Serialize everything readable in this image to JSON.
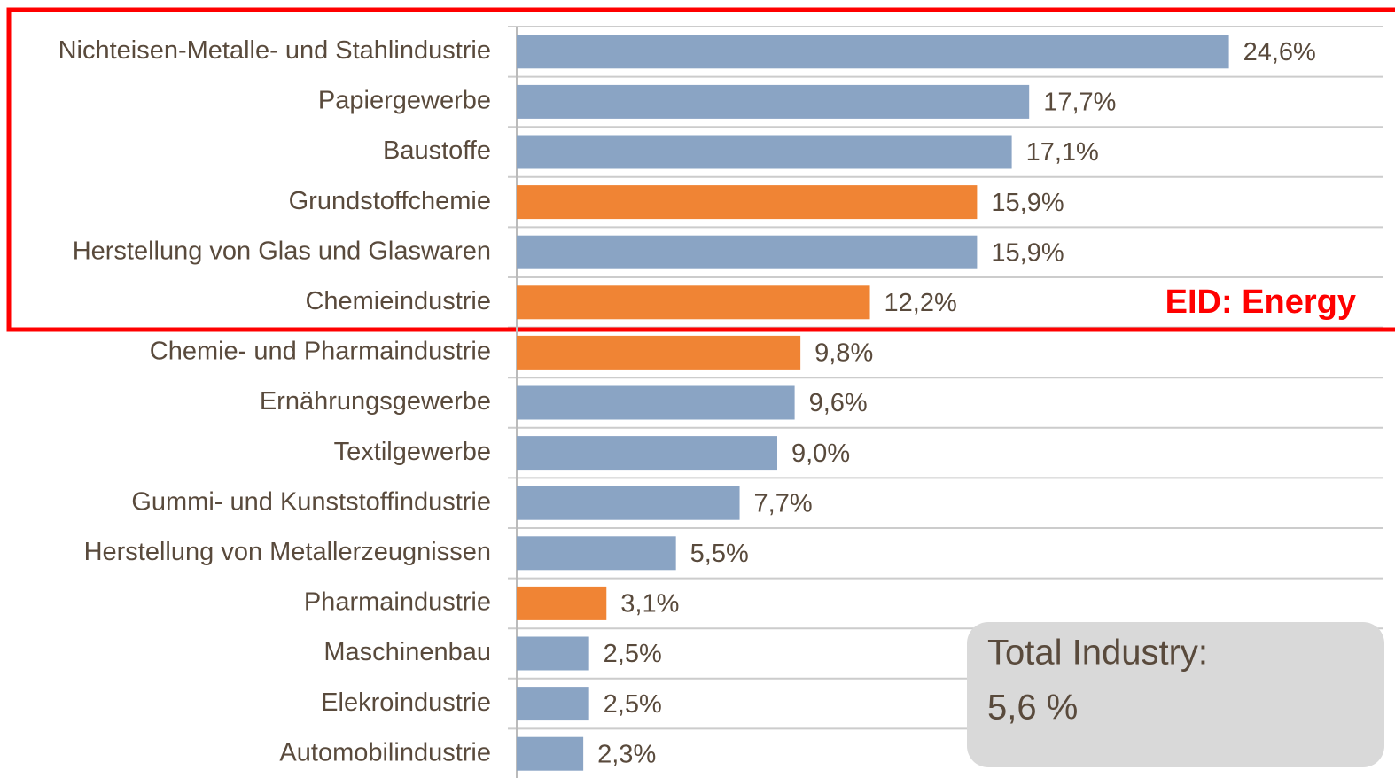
{
  "chart_data": {
    "type": "hbar",
    "categories": [
      "Nichteisen-Metalle- und Stahlindustrie",
      "Papiergewerbe",
      "Baustoffe",
      "Grundstoffchemie",
      "Herstellung von Glas und Glaswaren",
      "Chemieindustrie",
      "Chemie- und Pharmaindustrie",
      "Ernährungsgewerbe",
      "Textilgewerbe",
      "Gummi- und Kunststoffindustrie",
      "Herstellung von Metallerzeugnissen",
      "Pharmaindustrie",
      "Maschinenbau",
      "Elekroindustrie",
      "Automobilindustrie"
    ],
    "values": [
      24.6,
      17.7,
      17.1,
      15.9,
      15.9,
      12.2,
      9.8,
      9.6,
      9.0,
      7.7,
      5.5,
      3.1,
      2.5,
      2.5,
      2.3
    ],
    "value_labels": [
      "24,6%",
      "17,7%",
      "17,1%",
      "15,9%",
      "15,9%",
      "12,2%",
      "9,8%",
      "9,6%",
      "9,0%",
      "7,7%",
      "5,5%",
      "3,1%",
      "2,5%",
      "2,5%",
      "2,3%"
    ],
    "colors": [
      "#8aa4c4",
      "#8aa4c4",
      "#8aa4c4",
      "#f08434",
      "#8aa4c4",
      "#f08434",
      "#f08434",
      "#8aa4c4",
      "#8aa4c4",
      "#8aa4c4",
      "#8aa4c4",
      "#f08434",
      "#8aa4c4",
      "#8aa4c4",
      "#8aa4c4"
    ],
    "xlim": [
      0,
      30
    ],
    "annotations": [
      "EID: Energy",
      "Total Industry:",
      "5,6 %"
    ]
  }
}
